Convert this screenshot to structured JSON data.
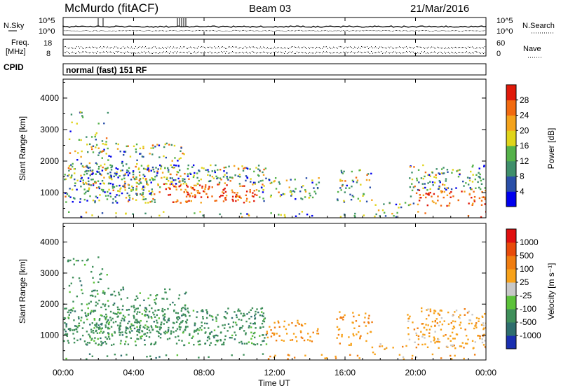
{
  "header": {
    "station": "McMurdo (fitACF)",
    "beam": "Beam 03",
    "date": "21/Mar/2016"
  },
  "noise_panel": {
    "left_label": "N.Sky",
    "right_label": "N.Search",
    "ticks": [
      "10^5",
      "10^0"
    ]
  },
  "freq_panel": {
    "left_label_line1": "Freq.",
    "left_label_line2": "[MHz]",
    "left_ticks": [
      "18",
      "8"
    ],
    "right_label": "Nave",
    "right_ticks": [
      "60",
      "0"
    ]
  },
  "cpid": {
    "label": "CPID",
    "value": "normal (fast) 151 RF"
  },
  "time_axis": {
    "label": "Time UT",
    "ticks": [
      "00:00",
      "04:00",
      "08:00",
      "12:00",
      "16:00",
      "20:00",
      "00:00"
    ]
  },
  "chart_data": [
    {
      "type": "heatmap",
      "ylabel": "Slant Range [km]",
      "xlabel": "Time UT",
      "xlim": [
        0,
        24
      ],
      "ylim": [
        200,
        4600
      ],
      "y_ticks": [
        "1000",
        "2000",
        "3000",
        "4000"
      ],
      "colorbar": {
        "label": "Power [dB]",
        "ticks": [
          "4",
          "8",
          "12",
          "16",
          "20",
          "24",
          "28"
        ],
        "colors": [
          "#0000ee",
          "#2a4fa8",
          "#3f8f6b",
          "#55b24a",
          "#e0d41a",
          "#f4a31c",
          "#f26a10",
          "#e01a0a"
        ]
      }
    },
    {
      "type": "heatmap",
      "ylabel": "Slant Range [km]",
      "xlabel": "Time UT",
      "xlim": [
        0,
        24
      ],
      "ylim": [
        200,
        4600
      ],
      "y_ticks": [
        "1000",
        "2000",
        "3000",
        "4000"
      ],
      "colorbar": {
        "label": "Velocity [m s⁻¹]",
        "ticks": [
          "1000",
          "500",
          "100",
          "25",
          "-25",
          "-100",
          "-500",
          "-1000"
        ],
        "colors": [
          "#1a2fb0",
          "#2e6e6e",
          "#3f8f5a",
          "#5cc23a",
          "#c8c8c8",
          "#f7a21a",
          "#f07d10",
          "#e84a0a",
          "#e01010"
        ]
      }
    }
  ]
}
